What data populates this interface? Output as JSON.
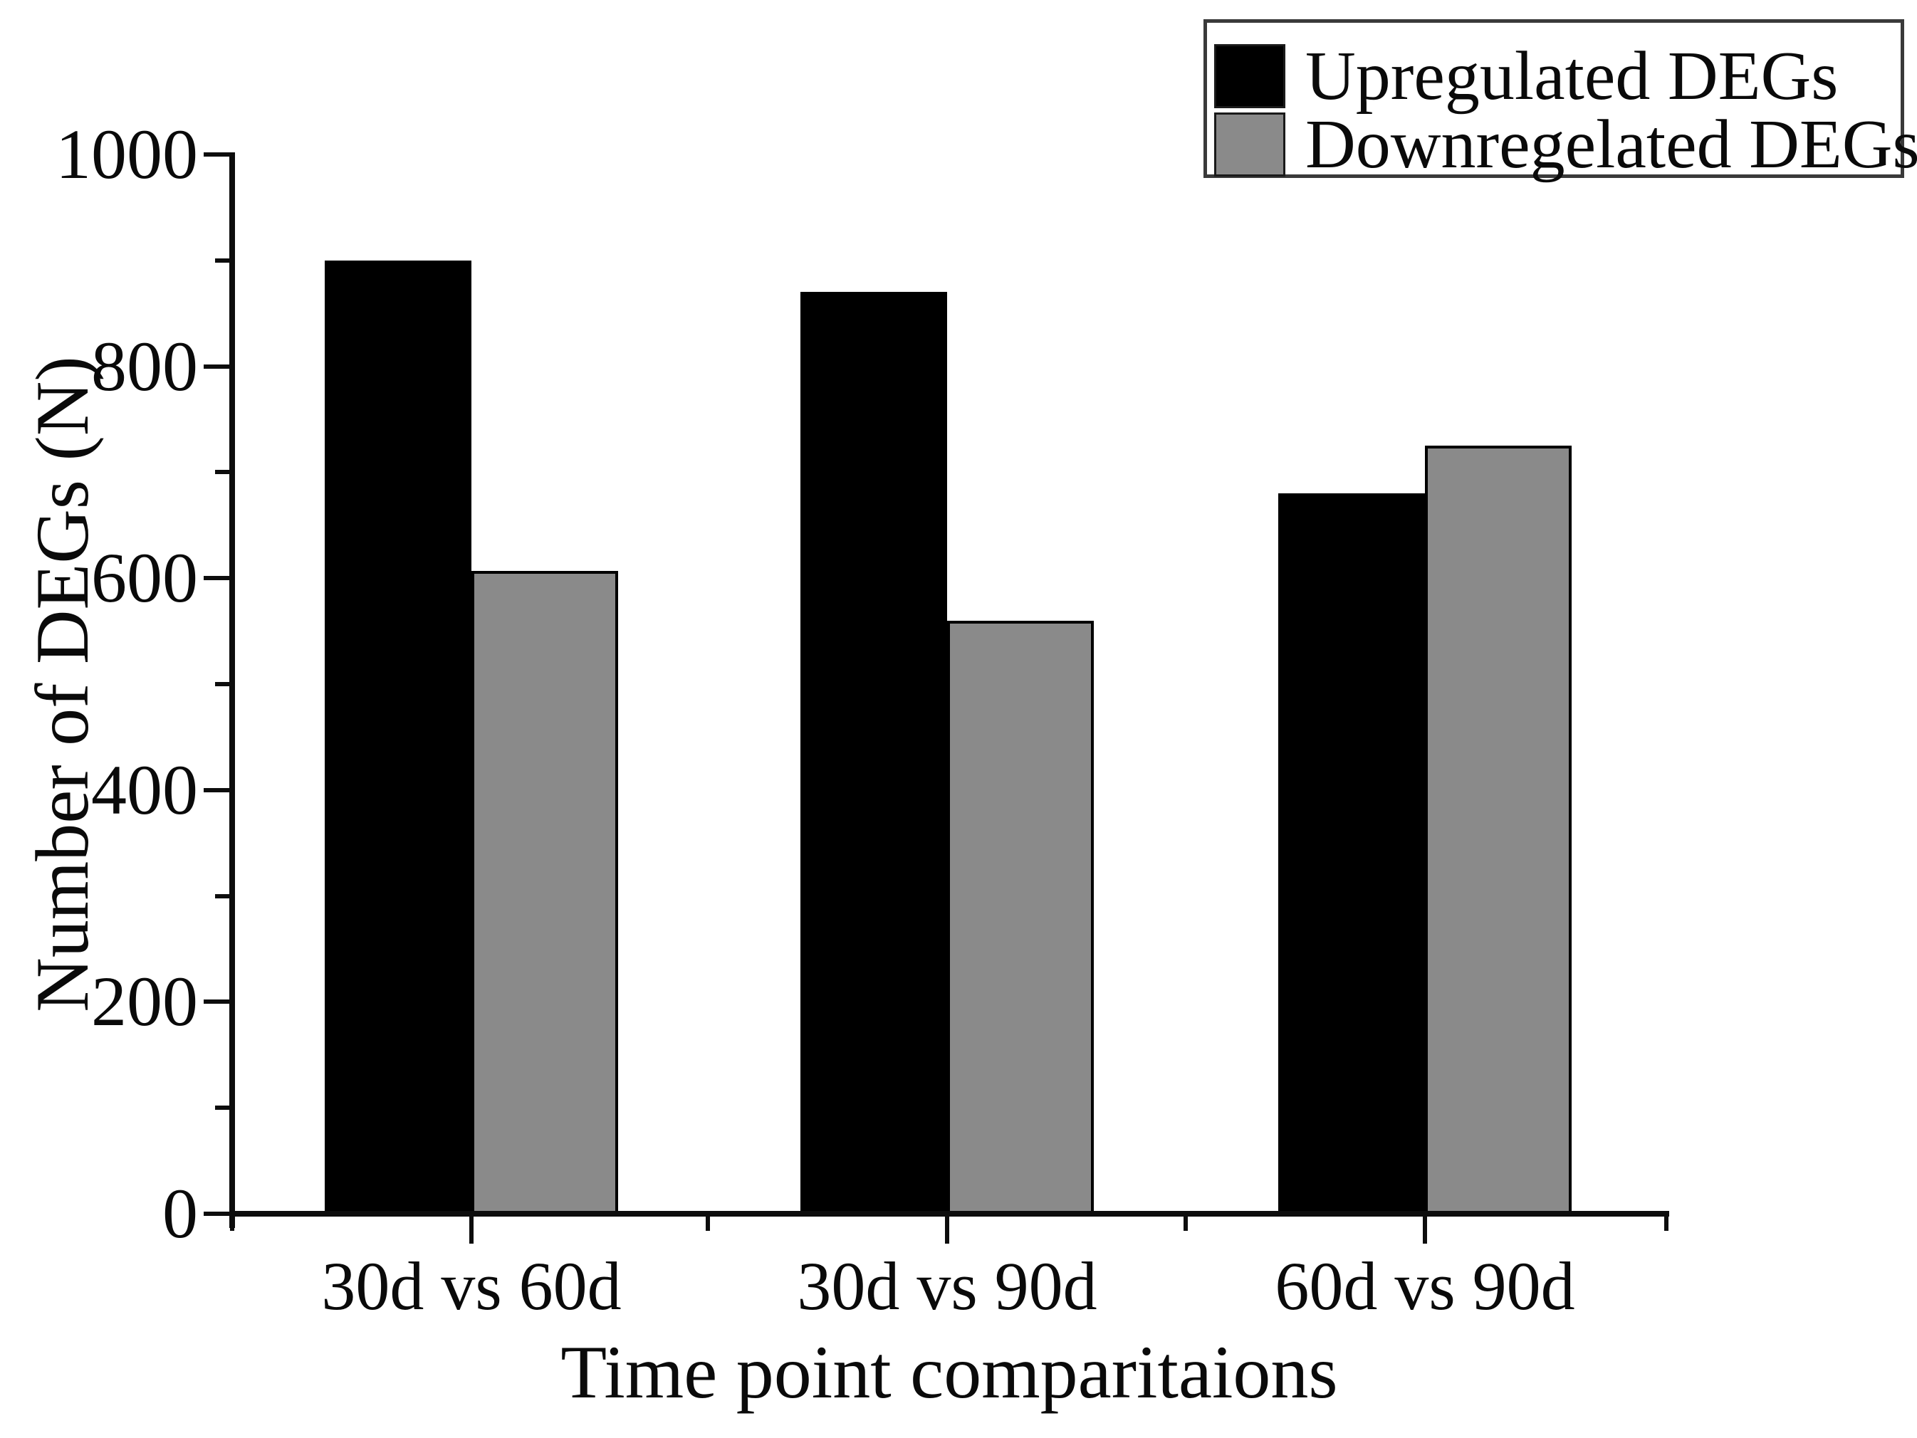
{
  "chart_data": {
    "type": "bar",
    "categories": [
      "30d vs 60d",
      "30d vs 90d",
      "60d vs 90d"
    ],
    "series": [
      {
        "name": "Upregulated DEGs",
        "color": "#000000",
        "values": [
          900,
          870,
          680
        ]
      },
      {
        "name": "Downregelated DEGs",
        "color": "#8a8a8a",
        "values": [
          607,
          560,
          725
        ]
      }
    ],
    "title": "",
    "xlabel": "Time point comparitaions",
    "ylabel": "Number of DEGs (N)",
    "ylim": [
      0,
      1000
    ],
    "ytick_step_major": 200,
    "ytick_step_minor": 100,
    "ytick_labels": [
      "0",
      "200",
      "400",
      "600",
      "800",
      "1000"
    ],
    "grid": false,
    "legend_position": "top-right",
    "bar_outline_color": "#000000",
    "background_color": "#ffffff"
  }
}
